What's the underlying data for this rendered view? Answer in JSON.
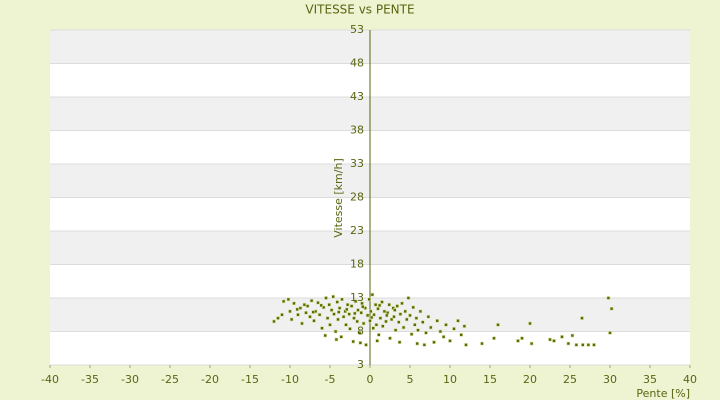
{
  "chart_data": {
    "type": "scatter",
    "title": "VITESSE vs PENTE",
    "x_label": "Pente [%]",
    "y_label": "Vitesse [km/h]",
    "color": "#5b6b00",
    "grid": true,
    "xlim": [
      -40,
      40
    ],
    "ylim": [
      3,
      53
    ],
    "xticks": [
      -40,
      -35,
      -30,
      -25,
      -20,
      -15,
      -10,
      -5,
      0,
      5,
      10,
      15,
      20,
      25,
      30,
      35,
      40
    ],
    "yticks": [
      3,
      8,
      13,
      18,
      23,
      28,
      33,
      38,
      43,
      48,
      53
    ],
    "x": [
      -12,
      -11.5,
      -11,
      -10.8,
      -10.2,
      -10,
      -9.8,
      -9.5,
      -9,
      -8.7,
      -8.5,
      -8.2,
      -8,
      -7.8,
      -7.5,
      -7.3,
      -7,
      -6.8,
      -6.5,
      -6.3,
      -6,
      -5.8,
      -5.5,
      -5.3,
      -5.1,
      -5,
      -4.8,
      -4.6,
      -4.5,
      -4.3,
      -4.1,
      -4,
      -3.8,
      -3.6,
      -3.5,
      -3.3,
      -3.1,
      -3,
      -2.8,
      -2.6,
      -2.5,
      -2.3,
      -2.1,
      -2,
      -1.8,
      -1.6,
      -1.5,
      -1.3,
      -1.1,
      -1,
      -0.8,
      -0.6,
      -0.5,
      -0.3,
      -0.1,
      0,
      0.1,
      0.3,
      0.4,
      0.5,
      0.7,
      0.8,
      1,
      1.1,
      1.3,
      1.5,
      1.6,
      1.8,
      2,
      2.2,
      2.4,
      2.5,
      2.7,
      2.9,
      3,
      3.2,
      3.4,
      3.6,
      3.8,
      4,
      4.2,
      4.4,
      4.6,
      4.8,
      5,
      5.2,
      5.4,
      5.6,
      5.8,
      6,
      6.3,
      6.6,
      7,
      7.3,
      7.6,
      8,
      8.4,
      8.8,
      9.2,
      9.5,
      10,
      10.5,
      11,
      11.4,
      11.8,
      12,
      14,
      15.5,
      16,
      18.5,
      19,
      20,
      20.2,
      22.5,
      23,
      24,
      24.8,
      25.3,
      25.8,
      26.5,
      26.6,
      27.3,
      28,
      29.8,
      30,
      30.2,
      -3.9,
      -2.9,
      -1.9,
      -0.9,
      0.2,
      1.2,
      2.1,
      3.1,
      -6.1,
      -7.1,
      -9.1,
      -4.2,
      -1.2,
      0.9,
      6.8,
      5.9,
      3.7,
      -5.6
    ],
    "values": [
      9.5,
      10,
      10.5,
      12.5,
      12.8,
      11,
      9.8,
      12.2,
      10.5,
      11.5,
      9.2,
      12,
      10.8,
      11.8,
      10.2,
      12.6,
      9.6,
      11,
      12.3,
      10.5,
      8.5,
      11.6,
      13,
      10,
      12,
      9,
      11.2,
      13.2,
      10.6,
      8,
      12.4,
      9.8,
      11.5,
      7.2,
      12.8,
      10.2,
      11,
      9,
      12,
      10.6,
      8.4,
      11.8,
      6.5,
      10,
      12.5,
      9.5,
      11.2,
      7.8,
      10.8,
      12.2,
      9.2,
      11.5,
      6,
      10.4,
      12.8,
      9.6,
      11,
      13.5,
      8.5,
      10.5,
      12,
      9,
      11.4,
      7.5,
      10,
      12.4,
      8.8,
      11,
      9.5,
      10.8,
      12,
      7,
      9.8,
      11.5,
      10.2,
      8.2,
      11.8,
      9.4,
      10.6,
      12.2,
      8.6,
      11,
      9.8,
      13,
      10.4,
      7.6,
      11.6,
      9,
      10,
      8.2,
      11,
      9.4,
      7.8,
      10.2,
      8.6,
      6.4,
      9.6,
      8,
      7.2,
      9,
      6.6,
      8.4,
      9.6,
      7.5,
      8.8,
      6,
      6.2,
      7,
      9,
      6.6,
      7,
      9.2,
      6.2,
      6.8,
      6.6,
      7.2,
      6.2,
      7.4,
      6,
      10,
      6,
      6,
      6,
      13,
      7.8,
      11.4,
      10.9,
      11.3,
      10.7,
      11.7,
      10.1,
      11.9,
      10.4,
      11.2,
      11.9,
      10.9,
      11.3,
      6.8,
      6.3,
      6.6,
      6,
      6.2,
      6.4,
      7.4
    ]
  }
}
